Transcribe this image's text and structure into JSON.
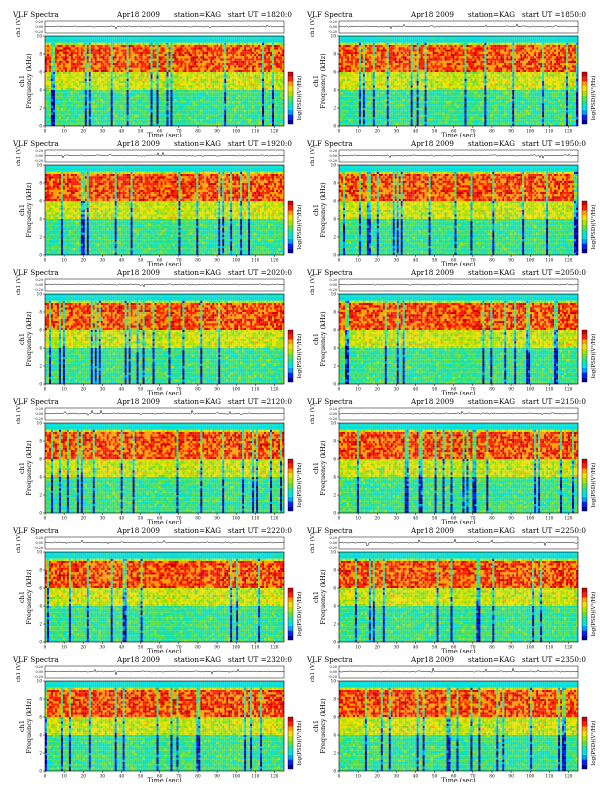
{
  "colors": {
    "scale": [
      "#0000a0",
      "#0020ff",
      "#00a0ff",
      "#00e0e0",
      "#20e0a0",
      "#60e040",
      "#b0e000",
      "#f0e000",
      "#ffa000",
      "#ff2000",
      "#d00000"
    ],
    "trace": "#000000",
    "background_band": "#18e8e8"
  },
  "chart_data": [
    {
      "type": "heatmap",
      "title": "VLF Spectra",
      "date": "Apr18 2009",
      "station": "station=KAG",
      "start": "start  UT =1820:0",
      "wave_label": "ch1 (V)",
      "wave_ticks": [
        "0.20",
        "0.00",
        "-0.20"
      ],
      "xlabel": "Time  (sec)",
      "ylabel": "ch1\nFrequency (kHz)",
      "cbar_label": "log(PSD)(V²/Hz)",
      "xlim": [
        0,
        125
      ],
      "x_ticks": [
        0,
        10,
        20,
        30,
        40,
        50,
        60,
        70,
        80,
        90,
        100,
        110,
        120
      ],
      "ylim": [
        0,
        10
      ],
      "y_ticks": [
        0,
        2,
        4,
        6,
        8,
        10
      ],
      "red_band_khz": [
        6,
        9
      ]
    },
    {
      "type": "heatmap",
      "title": "VLF Spectra",
      "date": "Apr18 2009",
      "station": "station=KAG",
      "start": "start  UT =1850:0",
      "wave_label": "ch1 (V)",
      "wave_ticks": [
        "0.20",
        "0.00",
        "-0.20"
      ],
      "xlabel": "Time  (sec)",
      "ylabel": "ch1\nFrequency (kHz)",
      "cbar_label": "log(PSD)(V²/Hz)",
      "xlim": [
        0,
        125
      ],
      "x_ticks": [
        0,
        10,
        20,
        30,
        40,
        50,
        60,
        70,
        80,
        90,
        100,
        110,
        120
      ],
      "ylim": [
        0,
        10
      ],
      "y_ticks": [
        0,
        2,
        4,
        6,
        8,
        10
      ],
      "red_band_khz": [
        6,
        9
      ]
    },
    {
      "type": "heatmap",
      "title": "VLF Spectra",
      "date": "Apr18 2009",
      "station": "station=KAG",
      "start": "start  UT =1920:0",
      "wave_label": "ch1 (V)",
      "wave_ticks": [
        "0.20",
        "0.00",
        "-0.20"
      ],
      "xlabel": "Time  (sec)",
      "ylabel": "ch1\nFrequency (kHz)",
      "cbar_label": "log(PSD)(V²/Hz)",
      "xlim": [
        0,
        125
      ],
      "x_ticks": [
        0,
        10,
        20,
        30,
        40,
        50,
        60,
        70,
        80,
        90,
        100,
        110,
        120
      ],
      "ylim": [
        0,
        10
      ],
      "y_ticks": [
        0,
        2,
        4,
        6,
        8,
        10
      ],
      "red_band_khz": [
        6,
        9
      ]
    },
    {
      "type": "heatmap",
      "title": "VLF Spectra",
      "date": "Apr18 2009",
      "station": "station=KAG",
      "start": "start  UT =1950:0",
      "wave_label": "ch1 (V)",
      "wave_ticks": [
        "0.20",
        "0.00",
        "-0.20"
      ],
      "xlabel": "Time  (sec)",
      "ylabel": "ch1\nFrequency (kHz)",
      "cbar_label": "log(PSD)(V²/Hz)",
      "xlim": [
        0,
        125
      ],
      "x_ticks": [
        0,
        10,
        20,
        30,
        40,
        50,
        60,
        70,
        80,
        90,
        100,
        110,
        120
      ],
      "ylim": [
        0,
        10
      ],
      "y_ticks": [
        0,
        2,
        4,
        6,
        8,
        10
      ],
      "red_band_khz": [
        6,
        9
      ]
    },
    {
      "type": "heatmap",
      "title": "VLF Spectra",
      "date": "Apr18 2009",
      "station": "station=KAG",
      "start": "start  UT =2020:0",
      "wave_label": "ch1 (V)",
      "wave_ticks": [
        "0.20",
        "0.00",
        "-0.20"
      ],
      "xlabel": "Time  (sec)",
      "ylabel": "ch1\nFrequency (kHz)",
      "cbar_label": "log(PSD)(V²/Hz)",
      "xlim": [
        0,
        125
      ],
      "x_ticks": [
        0,
        10,
        20,
        30,
        40,
        50,
        60,
        70,
        80,
        90,
        100,
        110,
        120
      ],
      "ylim": [
        0,
        10
      ],
      "y_ticks": [
        0,
        2,
        4,
        6,
        8,
        10
      ],
      "red_band_khz": [
        6,
        9
      ]
    },
    {
      "type": "heatmap",
      "title": "VLF Spectra",
      "date": "Apr18 2009",
      "station": "station=KAG",
      "start": "start  UT =2050:0",
      "wave_label": "ch1 (V)",
      "wave_ticks": [
        "0.20",
        "0.00",
        "-0.20"
      ],
      "xlabel": "Time  (sec)",
      "ylabel": "ch1\nFrequency (kHz)",
      "cbar_label": "log(PSD)(V²/Hz)",
      "xlim": [
        0,
        125
      ],
      "x_ticks": [
        0,
        10,
        20,
        30,
        40,
        50,
        60,
        70,
        80,
        90,
        100,
        110,
        120
      ],
      "ylim": [
        0,
        10
      ],
      "y_ticks": [
        0,
        2,
        4,
        6,
        8,
        10
      ],
      "red_band_khz": [
        6,
        9
      ]
    },
    {
      "type": "heatmap",
      "title": "VLF Spectra",
      "date": "Apr18 2009",
      "station": "station=KAG",
      "start": "start  UT =2120:0",
      "wave_label": "ch1 (V)",
      "wave_ticks": [
        "0.20",
        "0.00",
        "-0.20"
      ],
      "xlabel": "Time  (sec)",
      "ylabel": "ch1\nFrequency (kHz)",
      "cbar_label": "log(PSD)(V²/Hz)",
      "xlim": [
        0,
        125
      ],
      "x_ticks": [
        0,
        10,
        20,
        30,
        40,
        50,
        60,
        70,
        80,
        90,
        100,
        110,
        120
      ],
      "ylim": [
        0,
        10
      ],
      "y_ticks": [
        0,
        2,
        4,
        6,
        8,
        10
      ],
      "red_band_khz": [
        6,
        9
      ]
    },
    {
      "type": "heatmap",
      "title": "VLF Spectra",
      "date": "Apr18 2009",
      "station": "station=KAG",
      "start": "start  UT =2150:0",
      "wave_label": "ch1 (V)",
      "wave_ticks": [
        "0.20",
        "0.00",
        "-0.20"
      ],
      "xlabel": "Time  (sec)",
      "ylabel": "ch1\nFrequency (kHz)",
      "cbar_label": "log(PSD)(V²/Hz)",
      "xlim": [
        0,
        125
      ],
      "x_ticks": [
        0,
        10,
        20,
        30,
        40,
        50,
        60,
        70,
        80,
        90,
        100,
        110,
        120
      ],
      "ylim": [
        0,
        10
      ],
      "y_ticks": [
        0,
        2,
        4,
        6,
        8,
        10
      ],
      "red_band_khz": [
        6,
        9
      ]
    },
    {
      "type": "heatmap",
      "title": "VLF Spectra",
      "date": "Apr18 2009",
      "station": "station=KAG",
      "start": "start  UT =2220:0",
      "wave_label": "ch1 (V)",
      "wave_ticks": [
        "0.20",
        "0.00",
        "-0.20"
      ],
      "xlabel": "Time  (sec)",
      "ylabel": "ch1\nFrequency (kHz)",
      "cbar_label": "log(PSD)(V²/Hz)",
      "xlim": [
        0,
        125
      ],
      "x_ticks": [
        0,
        10,
        20,
        30,
        40,
        50,
        60,
        70,
        80,
        90,
        100,
        110,
        120
      ],
      "ylim": [
        0,
        10
      ],
      "y_ticks": [
        0,
        2,
        4,
        6,
        8,
        10
      ],
      "red_band_khz": [
        6,
        9
      ]
    },
    {
      "type": "heatmap",
      "title": "VLF Spectra",
      "date": "Apr18 2009",
      "station": "station=KAG",
      "start": "start  UT =2250:0",
      "wave_label": "ch1 (V)",
      "wave_ticks": [
        "0.20",
        "0.00",
        "-0.20"
      ],
      "xlabel": "Time  (sec)",
      "ylabel": "ch1\nFrequency (kHz)",
      "cbar_label": "log(PSD)(V²/Hz)",
      "xlim": [
        0,
        125
      ],
      "x_ticks": [
        0,
        10,
        20,
        30,
        40,
        50,
        60,
        70,
        80,
        90,
        100,
        110,
        120
      ],
      "ylim": [
        0,
        10
      ],
      "y_ticks": [
        0,
        2,
        4,
        6,
        8,
        10
      ],
      "red_band_khz": [
        6,
        9
      ]
    },
    {
      "type": "heatmap",
      "title": "VLF Spectra",
      "date": "Apr18 2009",
      "station": "station=KAG",
      "start": "start  UT =2320:0",
      "wave_label": "ch1 (V)",
      "wave_ticks": [
        "0.20",
        "0.00",
        "-0.20"
      ],
      "xlabel": "Time  (sec)",
      "ylabel": "ch1\nFrequency (kHz)",
      "cbar_label": "log(PSD)(V²/Hz)",
      "xlim": [
        0,
        125
      ],
      "x_ticks": [
        0,
        10,
        20,
        30,
        40,
        50,
        60,
        70,
        80,
        90,
        100,
        110,
        120
      ],
      "ylim": [
        0,
        10
      ],
      "y_ticks": [
        0,
        2,
        4,
        6,
        8,
        10
      ],
      "red_band_khz": [
        6,
        9
      ]
    },
    {
      "type": "heatmap",
      "title": "VLF Spectra",
      "date": "Apr18 2009",
      "station": "station=KAG",
      "start": "start  UT =2350:0",
      "wave_label": "ch1 (V)",
      "wave_ticks": [
        "0.20",
        "0.00",
        "-0.20"
      ],
      "xlabel": "Time  (sec)",
      "ylabel": "ch1\nFrequency (kHz)",
      "cbar_label": "log(PSD)(V²/Hz)",
      "xlim": [
        0,
        125
      ],
      "x_ticks": [
        0,
        10,
        20,
        30,
        40,
        50,
        60,
        70,
        80,
        90,
        100,
        110,
        120
      ],
      "ylim": [
        0,
        10
      ],
      "y_ticks": [
        0,
        2,
        4,
        6,
        8,
        10
      ],
      "red_band_khz": [
        6,
        9
      ]
    }
  ]
}
